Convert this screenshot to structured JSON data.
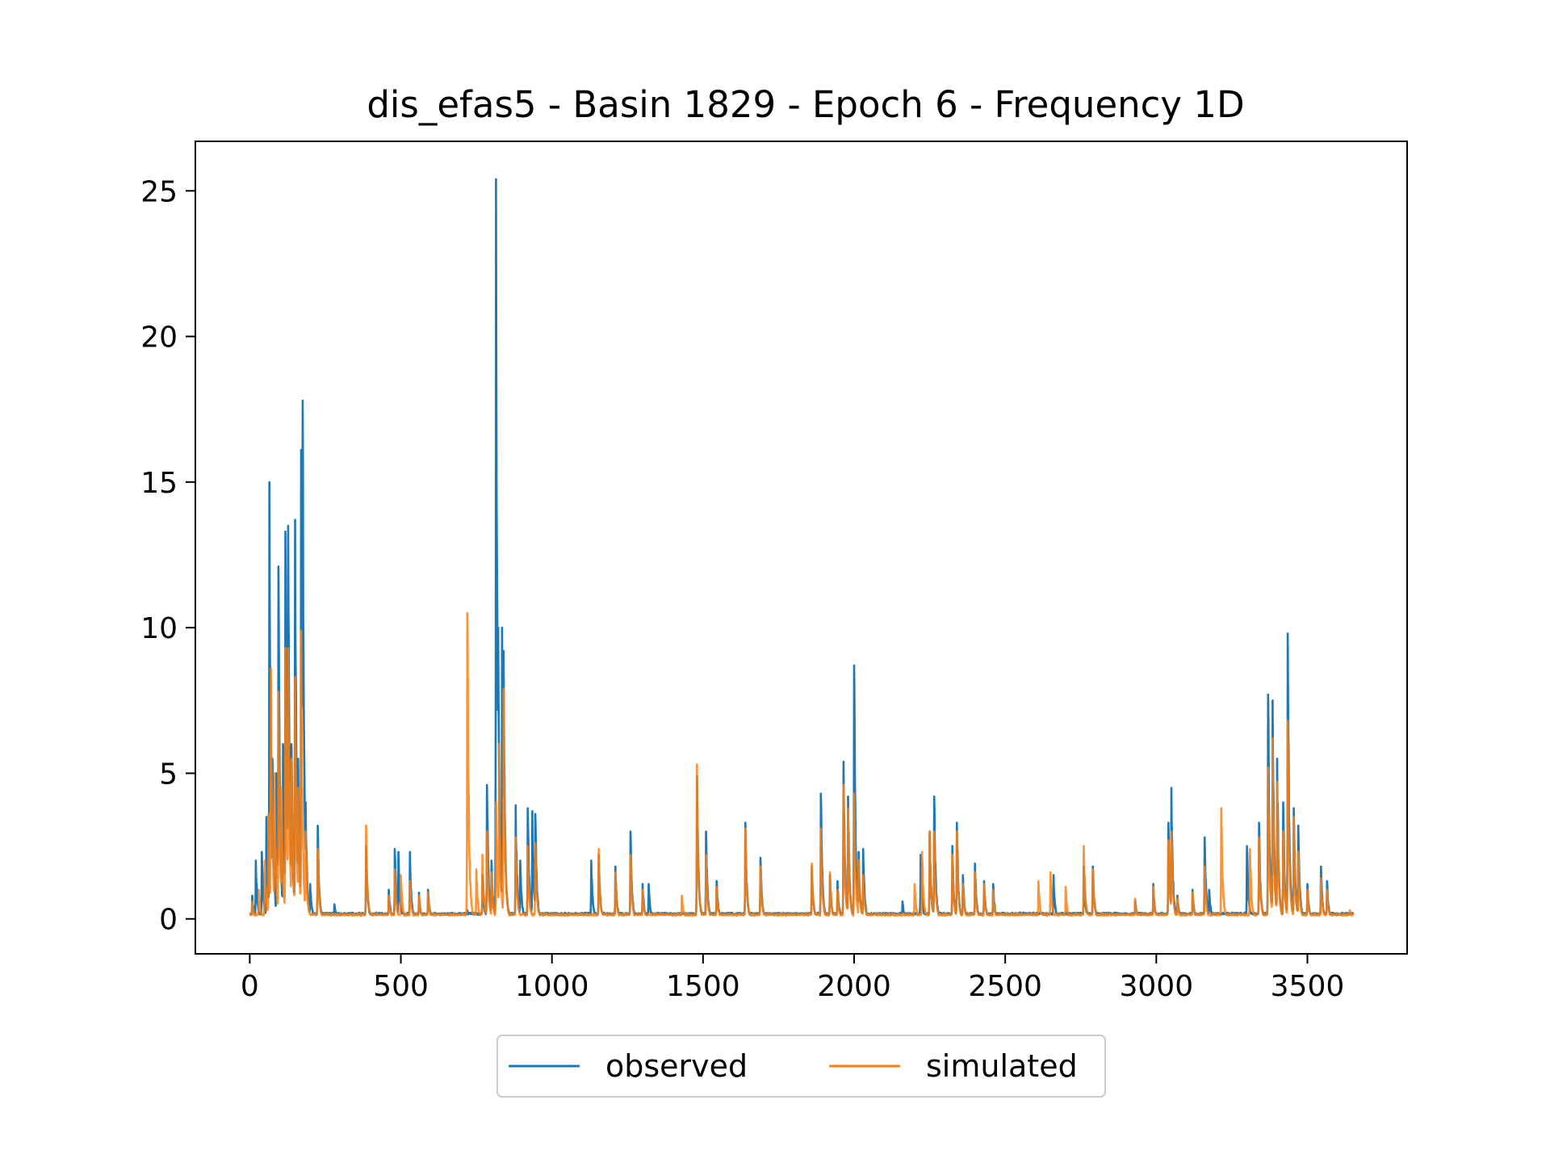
{
  "chart_data": {
    "type": "line",
    "title": "dis_efas5 - Basin 1829 - Epoch 6 - Frequency 1D",
    "xlabel": "",
    "ylabel": "",
    "xlim": [
      -180,
      3830
    ],
    "ylim": [
      -1.2,
      26.7
    ],
    "x_ticks": [
      0,
      500,
      1000,
      1500,
      2000,
      2500,
      3000,
      3500
    ],
    "y_ticks": [
      0,
      5,
      10,
      15,
      20,
      25
    ],
    "x_tick_labels": [
      "0",
      "500",
      "1000",
      "1500",
      "2000",
      "2500",
      "3000",
      "3500"
    ],
    "y_tick_labels": [
      "0",
      "5",
      "10",
      "15",
      "20",
      "25"
    ],
    "grid": false,
    "legend_placement": "below-center",
    "x_range": [
      0,
      3652
    ],
    "series": [
      {
        "name": "observed",
        "color": "#1f77b4",
        "baseline": 0.15,
        "peaks": [
          [
            8,
            0.8
          ],
          [
            20,
            2.0
          ],
          [
            40,
            2.3
          ],
          [
            55,
            3.5
          ],
          [
            65,
            15.0
          ],
          [
            75,
            5.5
          ],
          [
            88,
            5.0
          ],
          [
            95,
            12.1
          ],
          [
            110,
            6.0
          ],
          [
            118,
            13.3
          ],
          [
            127,
            13.5
          ],
          [
            138,
            6.0
          ],
          [
            150,
            13.7
          ],
          [
            160,
            5.5
          ],
          [
            170,
            16.1
          ],
          [
            175,
            17.8
          ],
          [
            185,
            4.0
          ],
          [
            200,
            1.2
          ],
          [
            225,
            3.2
          ],
          [
            280,
            0.5
          ],
          [
            385,
            2.5
          ],
          [
            460,
            1.0
          ],
          [
            480,
            2.4
          ],
          [
            492,
            2.3
          ],
          [
            530,
            2.3
          ],
          [
            560,
            0.9
          ],
          [
            590,
            1.0
          ],
          [
            720,
            0.3
          ],
          [
            770,
            1.5
          ],
          [
            785,
            4.6
          ],
          [
            800,
            2.0
          ],
          [
            815,
            25.4
          ],
          [
            822,
            10.0
          ],
          [
            835,
            10.0
          ],
          [
            840,
            9.2
          ],
          [
            880,
            3.9
          ],
          [
            895,
            2.0
          ],
          [
            920,
            3.8
          ],
          [
            935,
            3.7
          ],
          [
            945,
            3.6
          ],
          [
            1130,
            2.0
          ],
          [
            1155,
            2.2
          ],
          [
            1210,
            1.8
          ],
          [
            1260,
            3.0
          ],
          [
            1300,
            1.2
          ],
          [
            1320,
            1.2
          ],
          [
            1480,
            4.9
          ],
          [
            1510,
            3.0
          ],
          [
            1545,
            1.3
          ],
          [
            1640,
            3.3
          ],
          [
            1690,
            2.1
          ],
          [
            1860,
            1.8
          ],
          [
            1890,
            4.3
          ],
          [
            1920,
            1.5
          ],
          [
            1945,
            1.3
          ],
          [
            1965,
            5.4
          ],
          [
            1980,
            4.2
          ],
          [
            2000,
            8.7
          ],
          [
            2015,
            2.3
          ],
          [
            2030,
            2.4
          ],
          [
            2160,
            0.6
          ],
          [
            2220,
            2.2
          ],
          [
            2250,
            3.0
          ],
          [
            2265,
            4.2
          ],
          [
            2325,
            2.5
          ],
          [
            2340,
            3.3
          ],
          [
            2360,
            1.5
          ],
          [
            2400,
            1.9
          ],
          [
            2430,
            1.3
          ],
          [
            2460,
            1.2
          ],
          [
            2660,
            1.5
          ],
          [
            2760,
            1.8
          ],
          [
            2790,
            1.8
          ],
          [
            2930,
            0.6
          ],
          [
            2990,
            1.2
          ],
          [
            3040,
            3.3
          ],
          [
            3050,
            4.5
          ],
          [
            3070,
            0.8
          ],
          [
            3120,
            1.0
          ],
          [
            3160,
            2.8
          ],
          [
            3175,
            1.0
          ],
          [
            3300,
            2.5
          ],
          [
            3340,
            3.3
          ],
          [
            3370,
            7.7
          ],
          [
            3385,
            7.5
          ],
          [
            3400,
            5.5
          ],
          [
            3420,
            4.0
          ],
          [
            3435,
            9.8
          ],
          [
            3455,
            3.8
          ],
          [
            3470,
            3.2
          ],
          [
            3500,
            1.2
          ],
          [
            3545,
            1.8
          ],
          [
            3565,
            1.3
          ]
        ]
      },
      {
        "name": "simulated",
        "color": "#ff7f0e",
        "baseline": 0.12,
        "peaks": [
          [
            8,
            0.6
          ],
          [
            30,
            1.0
          ],
          [
            50,
            2.0
          ],
          [
            62,
            3.6
          ],
          [
            70,
            8.6
          ],
          [
            82,
            5.0
          ],
          [
            95,
            7.8
          ],
          [
            105,
            4.5
          ],
          [
            118,
            9.3
          ],
          [
            127,
            9.3
          ],
          [
            138,
            5.5
          ],
          [
            150,
            8.3
          ],
          [
            160,
            4.5
          ],
          [
            170,
            9.9
          ],
          [
            185,
            3.0
          ],
          [
            225,
            2.4
          ],
          [
            385,
            3.2
          ],
          [
            460,
            0.8
          ],
          [
            480,
            1.7
          ],
          [
            500,
            1.5
          ],
          [
            530,
            1.3
          ],
          [
            560,
            0.8
          ],
          [
            590,
            0.9
          ],
          [
            720,
            10.5
          ],
          [
            750,
            1.7
          ],
          [
            770,
            2.2
          ],
          [
            785,
            3.0
          ],
          [
            800,
            1.6
          ],
          [
            815,
            4.0
          ],
          [
            825,
            6.0
          ],
          [
            840,
            7.9
          ],
          [
            880,
            2.8
          ],
          [
            920,
            2.5
          ],
          [
            945,
            2.6
          ],
          [
            1155,
            2.4
          ],
          [
            1210,
            1.6
          ],
          [
            1260,
            2.2
          ],
          [
            1300,
            1.0
          ],
          [
            1430,
            0.8
          ],
          [
            1480,
            5.3
          ],
          [
            1510,
            2.2
          ],
          [
            1545,
            1.1
          ],
          [
            1640,
            3.1
          ],
          [
            1690,
            1.8
          ],
          [
            1860,
            1.9
          ],
          [
            1890,
            3.1
          ],
          [
            1920,
            1.6
          ],
          [
            1945,
            1.0
          ],
          [
            1965,
            4.6
          ],
          [
            1980,
            3.8
          ],
          [
            2000,
            4.3
          ],
          [
            2015,
            2.0
          ],
          [
            2030,
            1.5
          ],
          [
            2200,
            1.2
          ],
          [
            2225,
            2.3
          ],
          [
            2250,
            3.0
          ],
          [
            2265,
            3.0
          ],
          [
            2325,
            2.2
          ],
          [
            2340,
            3.0
          ],
          [
            2360,
            1.2
          ],
          [
            2400,
            1.6
          ],
          [
            2430,
            1.2
          ],
          [
            2460,
            1.0
          ],
          [
            2610,
            1.3
          ],
          [
            2650,
            1.6
          ],
          [
            2700,
            1.1
          ],
          [
            2760,
            2.5
          ],
          [
            2790,
            1.7
          ],
          [
            2930,
            0.7
          ],
          [
            2990,
            1.1
          ],
          [
            3040,
            2.7
          ],
          [
            3050,
            3.0
          ],
          [
            3070,
            0.7
          ],
          [
            3120,
            0.9
          ],
          [
            3160,
            1.8
          ],
          [
            3215,
            3.8
          ],
          [
            3310,
            2.4
          ],
          [
            3340,
            2.8
          ],
          [
            3370,
            5.2
          ],
          [
            3385,
            6.2
          ],
          [
            3400,
            4.7
          ],
          [
            3420,
            3.0
          ],
          [
            3435,
            6.8
          ],
          [
            3455,
            3.5
          ],
          [
            3470,
            2.3
          ],
          [
            3500,
            1.0
          ],
          [
            3545,
            1.4
          ],
          [
            3565,
            1.0
          ],
          [
            3640,
            0.3
          ]
        ]
      }
    ]
  }
}
